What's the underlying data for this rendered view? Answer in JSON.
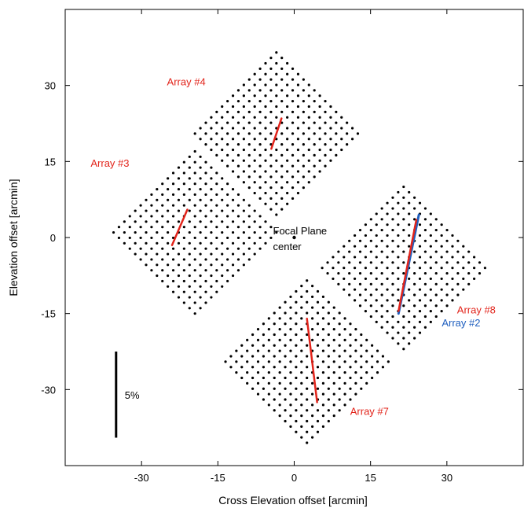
{
  "chart_data": {
    "type": "scatter",
    "title": "",
    "xlabel": "Cross Elevation offset [arcmin]",
    "ylabel": "Elevation offset [arcmin]",
    "xlim": [
      -45,
      45
    ],
    "ylim": [
      -45,
      45
    ],
    "xticks": [
      -30,
      -15,
      0,
      15,
      30
    ],
    "yticks": [
      -30,
      -15,
      0,
      15,
      30
    ],
    "xtick_labels": [
      "-30",
      "-15",
      "0",
      "15",
      "30"
    ],
    "ytick_labels": [
      "-30",
      "-15",
      "0",
      "15",
      "30"
    ],
    "grid": false,
    "colors": {
      "red": "#e2231a",
      "blue": "#1f5fbf",
      "dots": "#000000"
    },
    "arrays": [
      {
        "label": "Array #4",
        "center": [
          -3.5,
          20.5
        ],
        "half_diagonal": 16,
        "n": 16,
        "label_pos": [
          -25,
          30
        ],
        "line": [
          [
            -4.5,
            17.5
          ],
          [
            -2.5,
            23.5
          ]
        ]
      },
      {
        "label": "Array #3",
        "center": [
          -19.5,
          1
        ],
        "half_diagonal": 16,
        "n": 16,
        "label_pos": [
          -40,
          14
        ],
        "line": [
          [
            -24,
            -1.5
          ],
          [
            -21,
            5.5
          ]
        ]
      },
      {
        "label": "Array #8",
        "center": [
          21.5,
          -6
        ],
        "half_diagonal": 16,
        "n": 16,
        "label_pos": [
          32,
          -15
        ],
        "line": [
          [
            20.5,
            -14.5
          ],
          [
            24,
            3.5
          ]
        ]
      },
      {
        "label": "Array #7",
        "center": [
          2.5,
          -24.5
        ],
        "half_diagonal": 16,
        "n": 16,
        "label_pos": [
          11,
          -35
        ],
        "line": [
          [
            2.5,
            -16
          ],
          [
            4.5,
            -32.5
          ]
        ]
      }
    ],
    "array2": {
      "label": "Array #2",
      "label_pos": [
        29,
        -17.5
      ],
      "line": [
        [
          20.5,
          -15
        ],
        [
          24.5,
          4.5
        ]
      ]
    },
    "center_point": {
      "label_line1": "Focal Plane",
      "label_line2": "center",
      "x": 0,
      "y": 0
    },
    "scale_bar": {
      "label": "5%",
      "x": -35,
      "y_bottom": -39.5,
      "y_top": -22.5
    }
  }
}
